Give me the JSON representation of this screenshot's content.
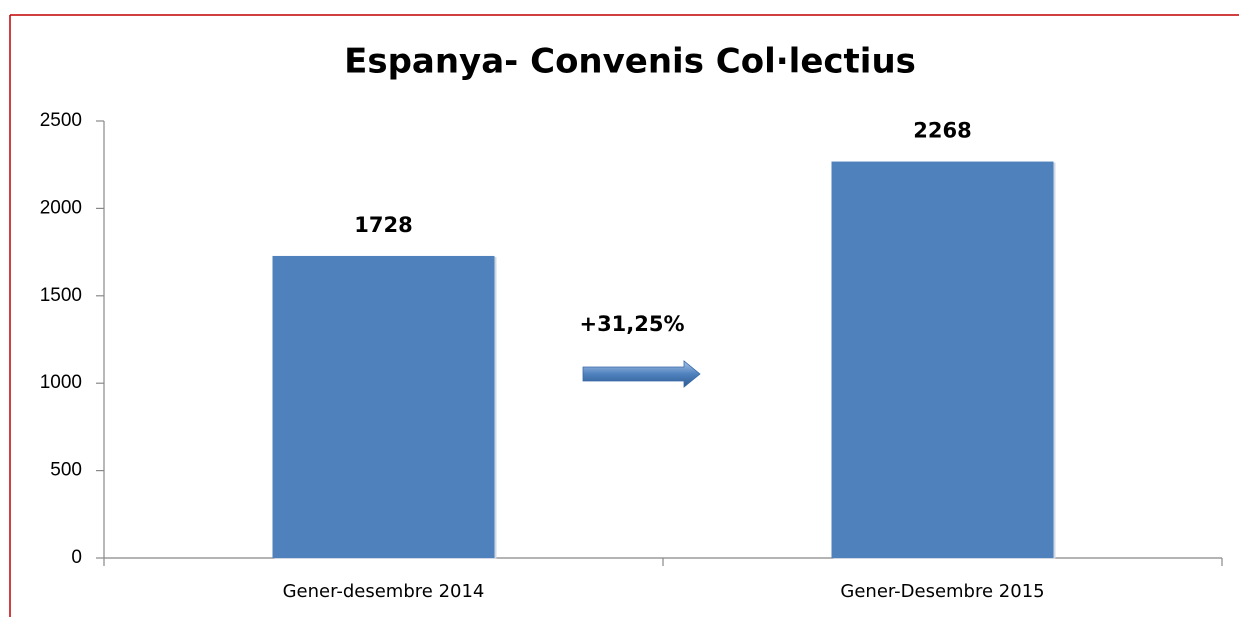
{
  "chart_data": {
    "type": "bar",
    "title": "Espanya- Convenis Col·lectius",
    "categories": [
      "Gener-desembre 2014",
      "Gener-Desembre 2015"
    ],
    "values": [
      1728,
      2268
    ],
    "color": "#4f81bd",
    "ylim": [
      0,
      2500
    ],
    "yticks": [
      0,
      500,
      1000,
      1500,
      2000,
      2500
    ],
    "grid": false,
    "annotation": "+31,25%"
  }
}
